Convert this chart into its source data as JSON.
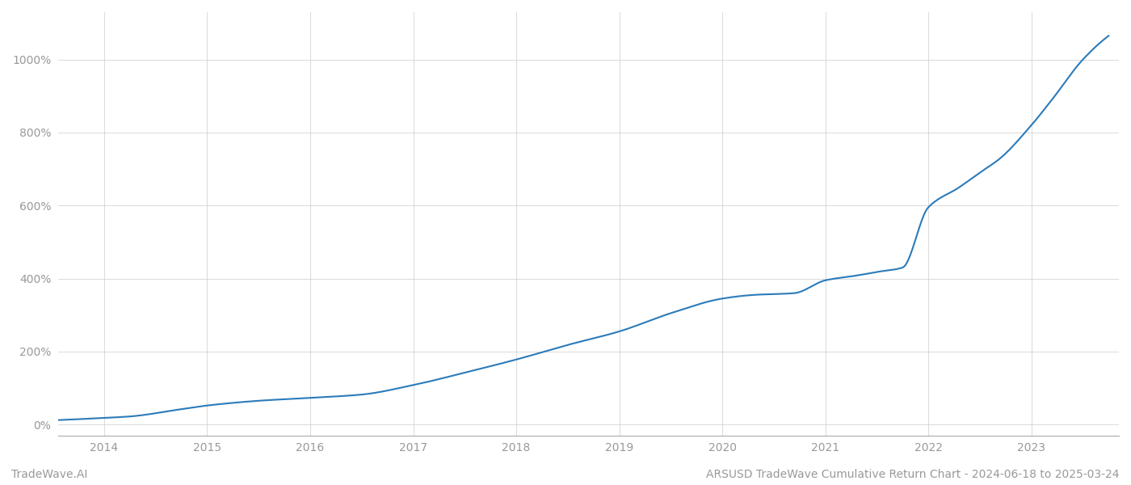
{
  "title": "ARSUSD TradeWave Cumulative Return Chart - 2024-06-18 to 2025-03-24",
  "watermark": "TradeWave.AI",
  "line_color": "#2b7bba",
  "background_color": "#ffffff",
  "grid_color": "#cccccc",
  "x_years": [
    2014,
    2015,
    2016,
    2017,
    2018,
    2019,
    2020,
    2021,
    2022,
    2023
  ],
  "y_ticks": [
    0,
    200,
    400,
    600,
    800,
    1000
  ],
  "ylim": [
    -30,
    1130
  ],
  "xlim": [
    2013.55,
    2023.85
  ],
  "data_points": {
    "years": [
      2013.55,
      2014.0,
      2014.25,
      2014.75,
      2015.0,
      2015.5,
      2016.0,
      2016.5,
      2017.0,
      2017.5,
      2018.0,
      2018.5,
      2019.0,
      2019.5,
      2020.0,
      2020.3,
      2020.7,
      2021.0,
      2021.3,
      2021.5,
      2021.75,
      2022.0,
      2022.3,
      2022.5,
      2022.7,
      2023.0,
      2023.2,
      2023.5,
      2023.75
    ],
    "values": [
      12,
      18,
      22,
      42,
      52,
      65,
      73,
      82,
      108,
      142,
      178,
      218,
      255,
      305,
      345,
      355,
      360,
      395,
      408,
      418,
      430,
      595,
      650,
      690,
      730,
      820,
      890,
      1000,
      1065
    ]
  },
  "line_width": 1.5,
  "spine_color": "#aaaaaa",
  "tick_label_color": "#999999",
  "title_color": "#999999",
  "watermark_color": "#999999",
  "title_fontsize": 10,
  "tick_fontsize": 10,
  "watermark_fontsize": 10
}
